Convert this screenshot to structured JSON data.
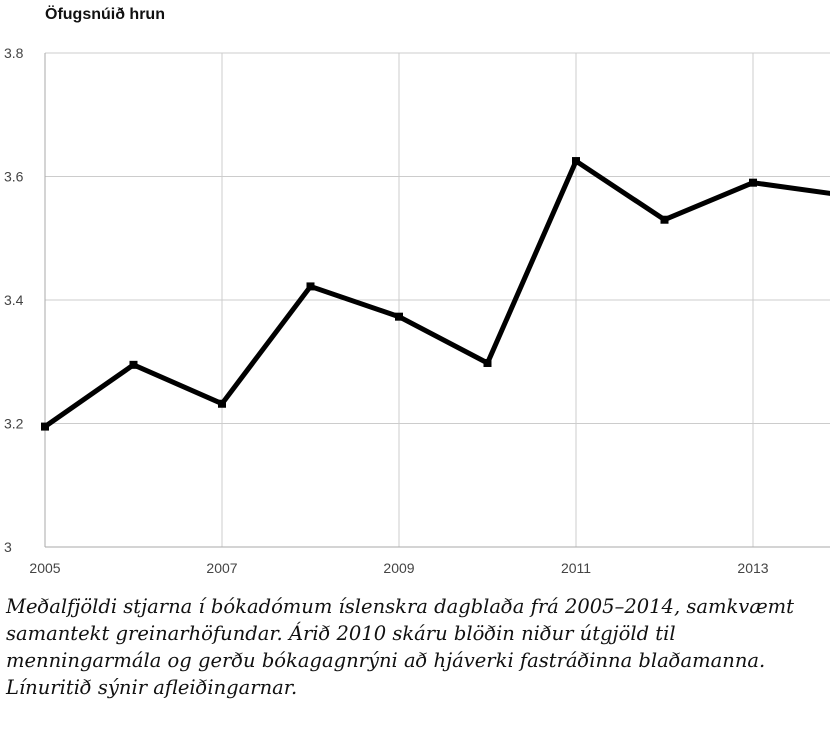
{
  "chart_data": {
    "type": "line",
    "title": "Öfugsnúið hrun",
    "xlabel": "",
    "ylabel": "",
    "x": [
      2005,
      2006,
      2007,
      2008,
      2009,
      2010,
      2011,
      2012,
      2013,
      2014
    ],
    "series": [
      {
        "values": [
          3.195,
          3.295,
          3.232,
          3.422,
          3.373,
          3.298,
          3.625,
          3.53,
          3.59,
          3.57
        ]
      }
    ],
    "xlim": [
      2005,
      2014
    ],
    "ylim": [
      3.0,
      3.8
    ],
    "x_ticks": [
      "2005",
      "2007",
      "2009",
      "2011",
      "2013"
    ],
    "y_ticks": [
      "3",
      "3.2",
      "3.4",
      "3.6",
      "3.8"
    ],
    "grid": true,
    "line_color": "#000000",
    "grid_color": "#cccccc"
  },
  "caption": "Meðalfjöldi stjarna í bókadómum íslenskra dagblaða frá 2005–2014, samkvæmt samantekt greinarhöfundar. Árið 2010 skáru blöðin niður útgjöld til menningarmála og gerðu bókagagnrýni að hjáverki fastráðinna blaðamanna. Línuritið sýnir afleiðingarnar."
}
